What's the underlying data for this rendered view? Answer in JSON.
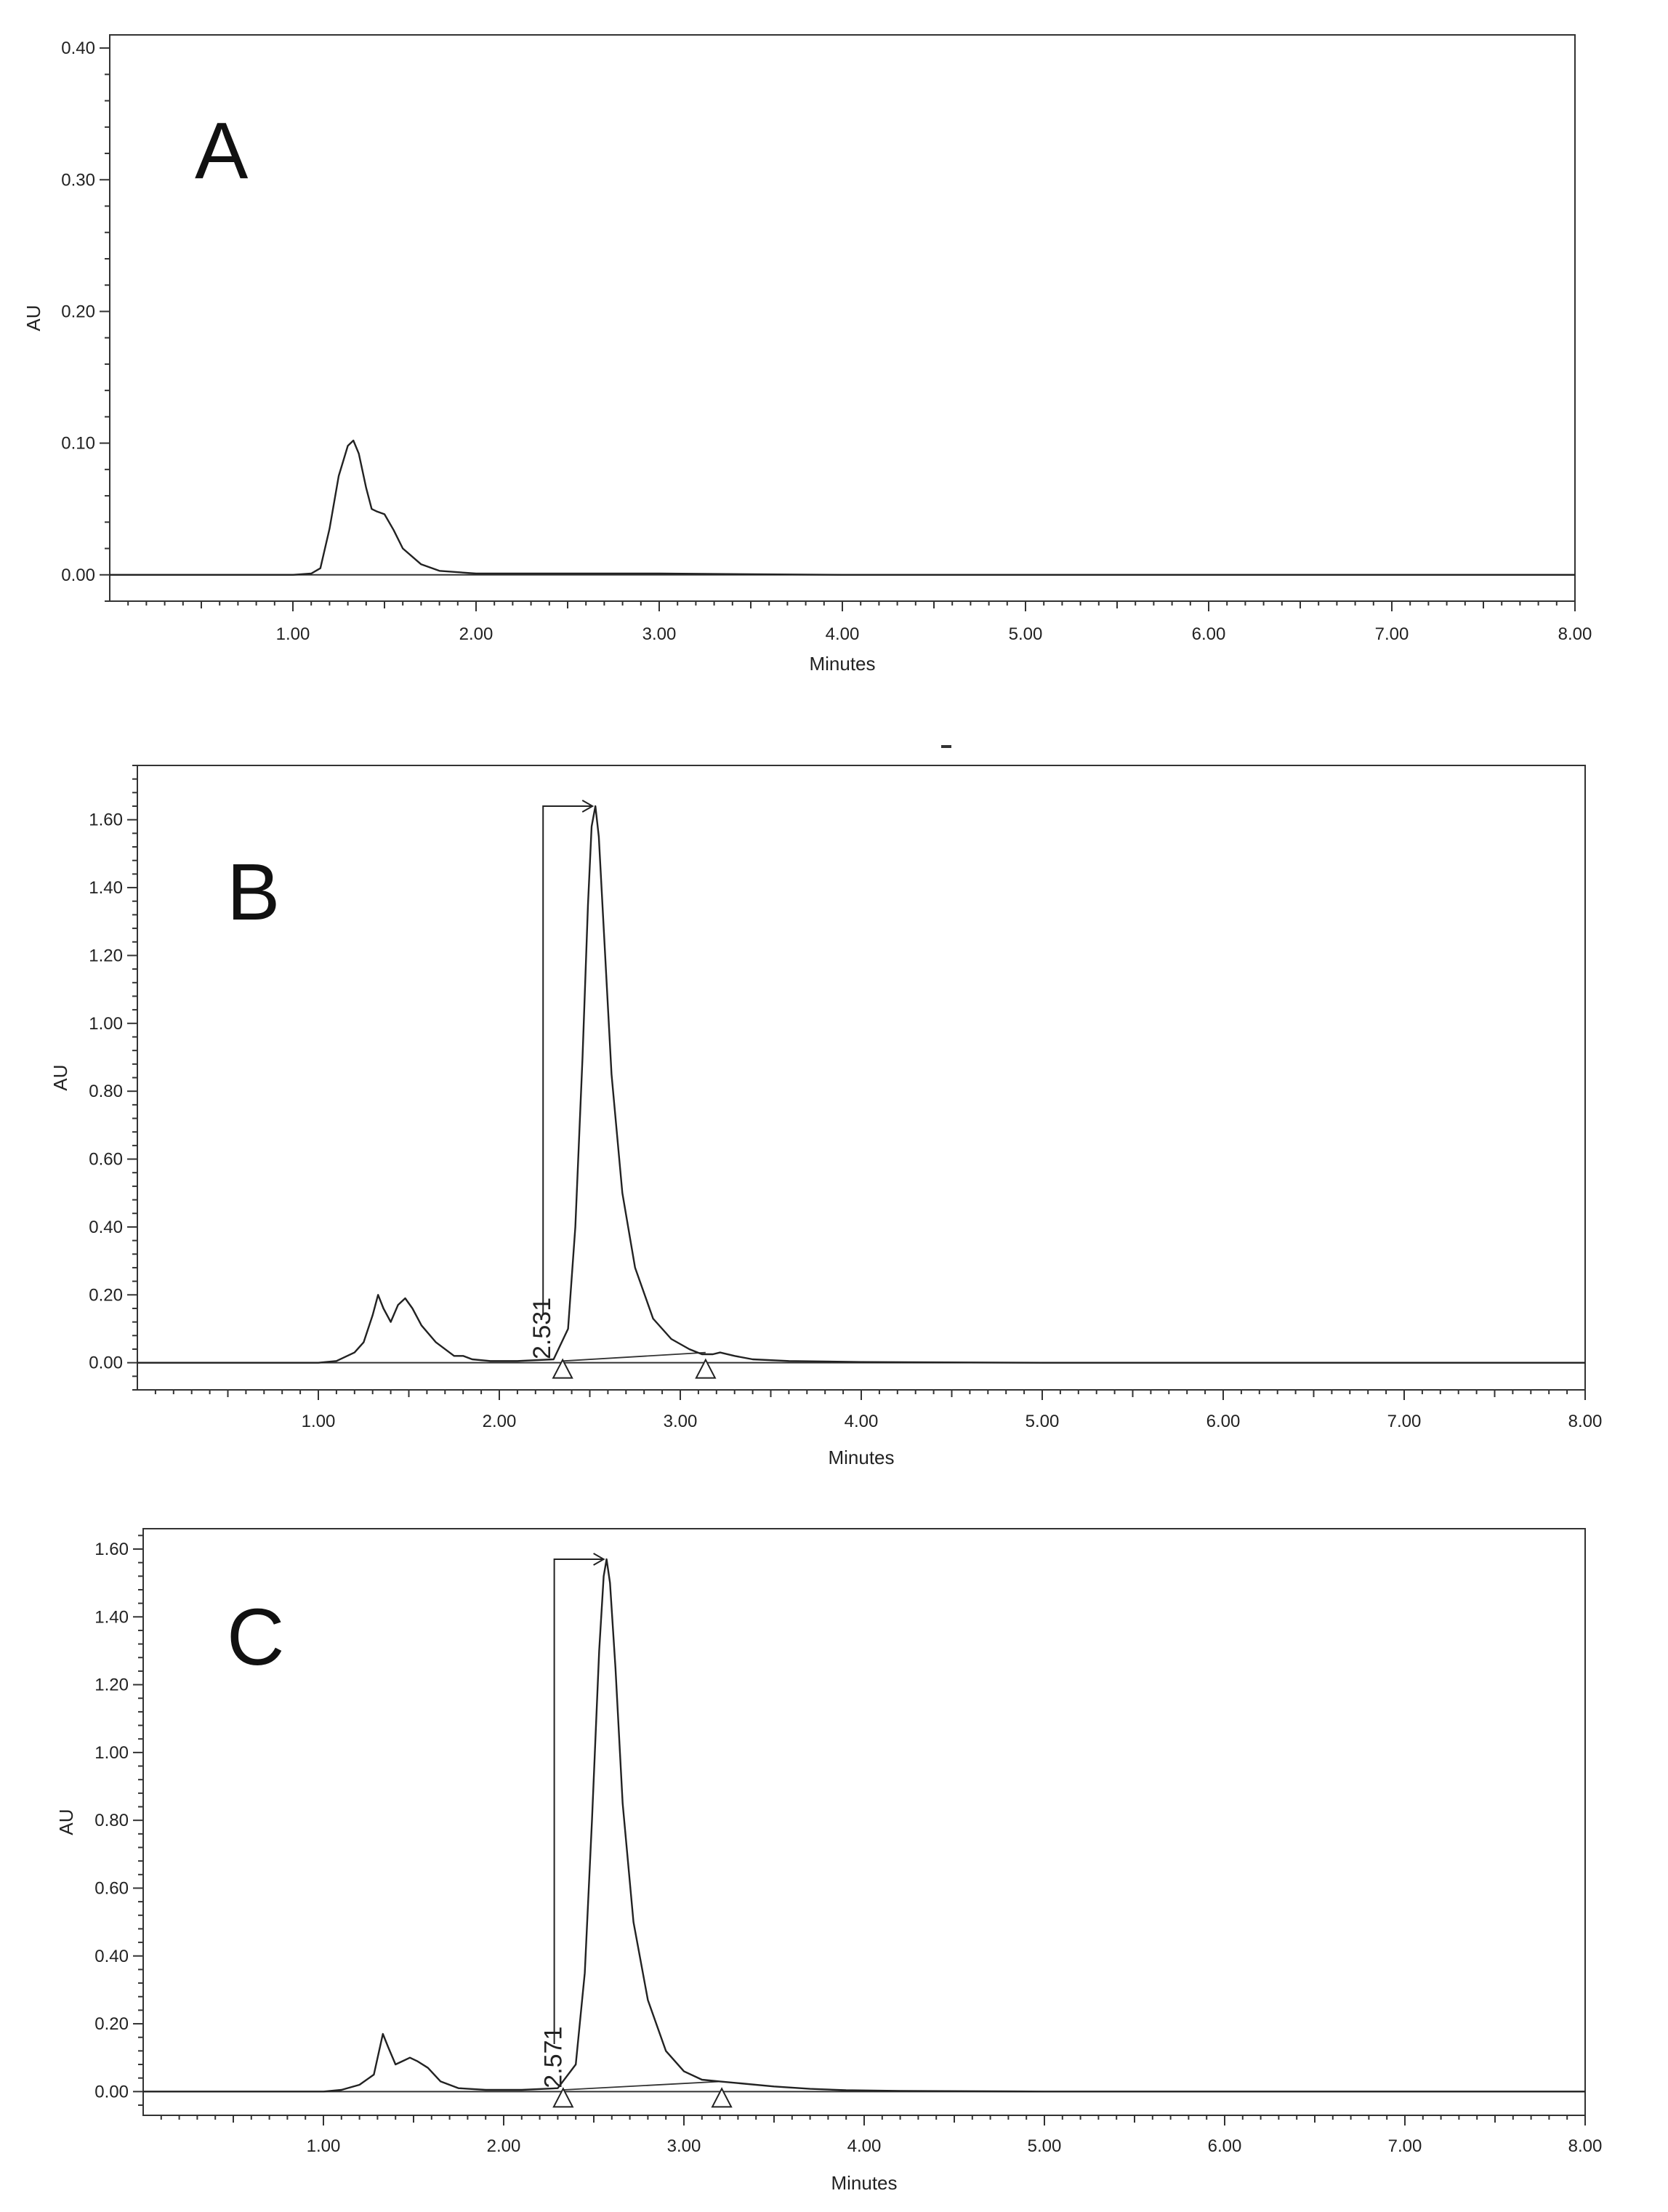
{
  "chart_data": [
    {
      "type": "line",
      "panel_label": "A",
      "xlabel": "Minutes",
      "ylabel": "AU",
      "xlim": [
        0,
        8
      ],
      "ylim": [
        -0.02,
        0.41
      ],
      "xticks": [
        "1.00",
        "2.00",
        "3.00",
        "4.00",
        "5.00",
        "6.00",
        "7.00",
        "8.00"
      ],
      "yticks": [
        "0.00",
        "0.10",
        "0.20",
        "0.30",
        "0.40"
      ],
      "series": [
        {
          "x": [
            0,
            1.0,
            1.1,
            1.15,
            1.2,
            1.25,
            1.3,
            1.33,
            1.36,
            1.4,
            1.43,
            1.46,
            1.5,
            1.55,
            1.6,
            1.7,
            1.8,
            2.0,
            2.5,
            3.0,
            4.0,
            5.0,
            6.0,
            7.0,
            8.0
          ],
          "y": [
            0,
            0,
            0.001,
            0.005,
            0.035,
            0.075,
            0.098,
            0.102,
            0.092,
            0.066,
            0.05,
            0.048,
            0.046,
            0.034,
            0.02,
            0.008,
            0.003,
            0.001,
            0.001,
            0.001,
            0.0,
            0.0,
            0.0,
            0.0,
            0.0
          ]
        }
      ],
      "peak_annotation": null,
      "markers": []
    },
    {
      "type": "line",
      "panel_label": "B",
      "xlabel": "Minutes",
      "ylabel": "AU",
      "xlim": [
        0,
        8
      ],
      "ylim": [
        -0.08,
        1.76
      ],
      "xticks": [
        "1.00",
        "2.00",
        "3.00",
        "4.00",
        "5.00",
        "6.00",
        "7.00",
        "8.00"
      ],
      "yticks": [
        "0.00",
        "0.20",
        "0.40",
        "0.60",
        "0.80",
        "1.00",
        "1.20",
        "1.40",
        "1.60"
      ],
      "series": [
        {
          "x": [
            0,
            1.0,
            1.1,
            1.2,
            1.25,
            1.3,
            1.33,
            1.36,
            1.4,
            1.44,
            1.48,
            1.52,
            1.57,
            1.65,
            1.75,
            1.8,
            1.85,
            1.95,
            2.1,
            2.3,
            2.38,
            2.42,
            2.46,
            2.49,
            2.51,
            2.531,
            2.55,
            2.58,
            2.62,
            2.68,
            2.75,
            2.85,
            2.95,
            3.05,
            3.12,
            3.18,
            3.22,
            3.3,
            3.4,
            3.6,
            4.0,
            5.0,
            6.0,
            7.0,
            8.0
          ],
          "y": [
            0,
            0,
            0.005,
            0.03,
            0.06,
            0.14,
            0.2,
            0.16,
            0.12,
            0.17,
            0.19,
            0.16,
            0.11,
            0.06,
            0.02,
            0.02,
            0.01,
            0.005,
            0.005,
            0.01,
            0.1,
            0.4,
            0.9,
            1.35,
            1.58,
            1.64,
            1.55,
            1.25,
            0.85,
            0.5,
            0.28,
            0.13,
            0.07,
            0.04,
            0.025,
            0.025,
            0.03,
            0.02,
            0.01,
            0.005,
            0.002,
            0.0,
            0.0,
            0.0,
            0.0
          ]
        }
      ],
      "peak_annotation": {
        "x": 2.531,
        "y": 1.64,
        "label": "2.531"
      },
      "markers": [
        {
          "x": 2.35,
          "y": 0.0
        },
        {
          "x": 3.14,
          "y": 0.0
        }
      ]
    },
    {
      "type": "line",
      "panel_label": "C",
      "xlabel": "Minutes",
      "ylabel": "AU",
      "xlim": [
        0,
        8
      ],
      "ylim": [
        -0.07,
        1.66
      ],
      "xticks": [
        "1.00",
        "2.00",
        "3.00",
        "4.00",
        "5.00",
        "6.00",
        "7.00",
        "8.00"
      ],
      "yticks": [
        "0.00",
        "0.20",
        "0.40",
        "0.60",
        "0.80",
        "1.00",
        "1.20",
        "1.40",
        "1.60"
      ],
      "series": [
        {
          "x": [
            0,
            1.0,
            1.1,
            1.2,
            1.28,
            1.33,
            1.36,
            1.4,
            1.44,
            1.48,
            1.52,
            1.58,
            1.65,
            1.75,
            1.9,
            2.1,
            2.3,
            2.4,
            2.45,
            2.49,
            2.53,
            2.555,
            2.571,
            2.59,
            2.62,
            2.66,
            2.72,
            2.8,
            2.9,
            3.0,
            3.1,
            3.2,
            3.3,
            3.5,
            3.7,
            3.9,
            4.2,
            5.0,
            6.0,
            7.0,
            8.0
          ],
          "y": [
            0,
            0,
            0.005,
            0.02,
            0.05,
            0.17,
            0.13,
            0.08,
            0.09,
            0.1,
            0.09,
            0.07,
            0.03,
            0.01,
            0.005,
            0.005,
            0.01,
            0.08,
            0.35,
            0.8,
            1.3,
            1.52,
            1.57,
            1.5,
            1.25,
            0.85,
            0.5,
            0.27,
            0.12,
            0.06,
            0.035,
            0.03,
            0.025,
            0.015,
            0.008,
            0.004,
            0.002,
            0.0,
            0.0,
            0.0,
            0.0
          ]
        }
      ],
      "peak_annotation": {
        "x": 2.571,
        "y": 1.57,
        "label": "2.571"
      },
      "markers": [
        {
          "x": 2.33,
          "y": 0.0
        },
        {
          "x": 3.21,
          "y": 0.0
        }
      ]
    }
  ]
}
